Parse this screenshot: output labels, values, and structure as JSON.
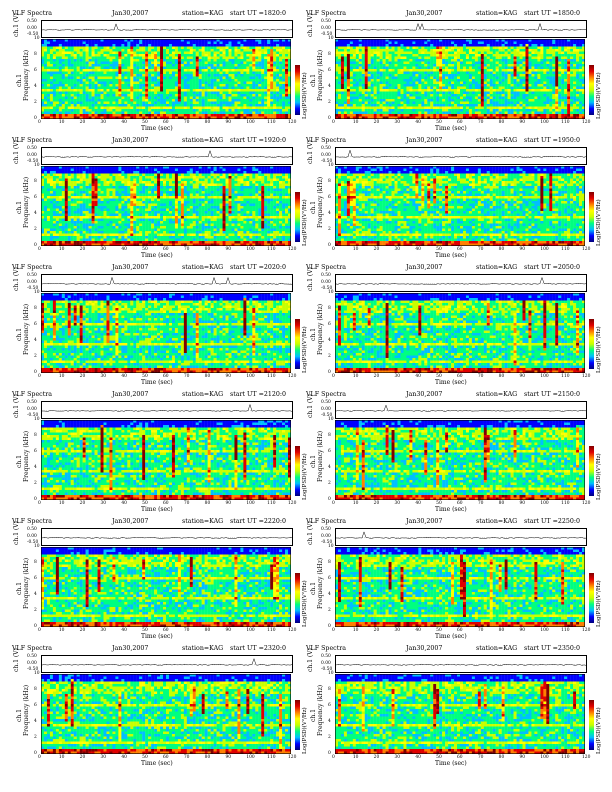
{
  "common": {
    "title": "VLF Spectra",
    "station": "station=KAG",
    "start_prefix": "start  UT =",
    "ch_label": "ch.1 (V)",
    "ylabel_pre": "ch.1",
    "ylabel": "Frequency  (kHz)",
    "xlabel": "Time  (sec)",
    "cbar_label": "Log(PSD)(V²/Hz)",
    "strip_ticks": [
      "0.50",
      "0.00",
      "-0.50"
    ],
    "freq_ticks": [
      "0",
      "2",
      "4",
      "6",
      "8",
      "10"
    ],
    "time_ticks": [
      "0",
      "10",
      "20",
      "30",
      "40",
      "50",
      "60",
      "70",
      "80",
      "90",
      "100",
      "110",
      "120"
    ]
  },
  "panels": [
    {
      "date": "Jan30,2007",
      "ut": "1820:0"
    },
    {
      "date": "Jan30,2007",
      "ut": "1850:0"
    },
    {
      "date": "Jan30,2007",
      "ut": "1920:0"
    },
    {
      "date": "Jan30,2007",
      "ut": "1950:0"
    },
    {
      "date": "Jan30,2007",
      "ut": "2020:0"
    },
    {
      "date": "Jan30,2007",
      "ut": "2050:0"
    },
    {
      "date": "Jan30,2007",
      "ut": "2120:0"
    },
    {
      "date": "Jan30,2007",
      "ut": "2150:0"
    },
    {
      "date": "Jan30,2007",
      "ut": "2220:0"
    },
    {
      "date": "Jan30,2007",
      "ut": "2250:0"
    },
    {
      "date": "Jan30,2007",
      "ut": "2320:0"
    },
    {
      "date": "Jan30,2007",
      "ut": "2350:0"
    }
  ],
  "chart_data": {
    "type": "heatmap",
    "title": "VLF Spectra",
    "xlabel": "Time  (sec)",
    "ylabel": "Frequency  (kHz)",
    "xlim": [
      0,
      120
    ],
    "ylim": [
      0,
      10
    ],
    "strip_ylim": [
      -0.5,
      0.5
    ],
    "colorbar_label": "Log(PSD)(V²/Hz)",
    "colormap": [
      "#00007a",
      "#0000ff",
      "#00bfff",
      "#00ff80",
      "#c8ff00",
      "#ffff00",
      "#ff8000",
      "#e00000",
      "#800000"
    ],
    "grid": false
  }
}
